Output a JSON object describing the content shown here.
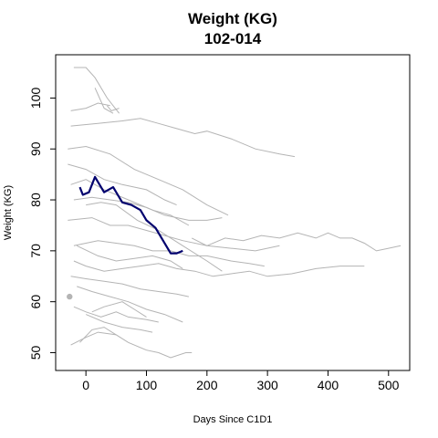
{
  "chart_data": {
    "type": "line",
    "title": "Weight (KG)",
    "subtitle": "102-014",
    "xlabel": "Days Since C1D1",
    "ylabel": "Weight (KG)",
    "xlim": [
      -50,
      535
    ],
    "ylim": [
      46.5,
      108.5
    ],
    "xticks": [
      0,
      100,
      200,
      300,
      400,
      500
    ],
    "yticks": [
      50,
      60,
      70,
      80,
      90,
      100
    ],
    "grid": false,
    "legend": "none",
    "colors": {
      "background_series": "#b4b4b4",
      "highlight_series": "#00006e",
      "highlight_point": "#b4b4b4"
    },
    "background_series": [
      {
        "values": [
          [
            -20,
            106
          ],
          [
            0,
            106
          ],
          [
            15,
            104
          ],
          [
            35,
            100
          ],
          [
            55,
            97
          ]
        ]
      },
      {
        "values": [
          [
            -25,
            97.5
          ],
          [
            0,
            98
          ],
          [
            20,
            99
          ],
          [
            40,
            98.5
          ]
        ]
      },
      {
        "values": [
          [
            35,
            98.5
          ],
          [
            42,
            97.5
          ],
          [
            55,
            98
          ]
        ]
      },
      {
        "values": [
          [
            15,
            102
          ],
          [
            30,
            98
          ],
          [
            45,
            97
          ]
        ]
      },
      {
        "values": [
          [
            -25,
            94.5
          ],
          [
            20,
            95
          ],
          [
            60,
            95.5
          ],
          [
            90,
            96
          ],
          [
            120,
            95
          ],
          [
            150,
            94
          ],
          [
            180,
            93
          ],
          [
            200,
            93.5
          ],
          [
            240,
            92
          ],
          [
            280,
            90
          ],
          [
            320,
            89
          ],
          [
            345,
            88.5
          ]
        ]
      },
      {
        "values": [
          [
            -30,
            90
          ],
          [
            0,
            90.5
          ],
          [
            40,
            89
          ],
          [
            80,
            86
          ],
          [
            120,
            84
          ],
          [
            160,
            82
          ],
          [
            200,
            79
          ],
          [
            235,
            77
          ]
        ]
      },
      {
        "values": [
          [
            -30,
            87
          ],
          [
            0,
            86
          ],
          [
            30,
            84
          ],
          [
            60,
            83
          ],
          [
            100,
            82
          ],
          [
            130,
            80
          ],
          [
            150,
            79
          ]
        ]
      },
      {
        "values": [
          [
            -25,
            83
          ],
          [
            0,
            84
          ],
          [
            30,
            82
          ],
          [
            70,
            80
          ],
          [
            110,
            78
          ],
          [
            140,
            77
          ],
          [
            170,
            75
          ]
        ]
      },
      {
        "values": [
          [
            -20,
            80
          ],
          [
            10,
            80.5
          ],
          [
            40,
            80
          ],
          [
            70,
            79.5
          ],
          [
            100,
            78.5
          ],
          [
            130,
            77
          ],
          [
            170,
            76
          ],
          [
            200,
            76
          ],
          [
            225,
            76.5
          ]
        ]
      },
      {
        "values": [
          [
            0,
            79
          ],
          [
            25,
            79.5
          ],
          [
            50,
            79
          ],
          [
            85,
            76
          ],
          [
            120,
            74
          ],
          [
            160,
            71
          ],
          [
            200,
            68
          ],
          [
            225,
            66
          ]
        ]
      },
      {
        "values": [
          [
            -30,
            76
          ],
          [
            10,
            76.5
          ],
          [
            40,
            75
          ],
          [
            70,
            75
          ],
          [
            100,
            74
          ],
          [
            130,
            73
          ],
          [
            160,
            72
          ],
          [
            200,
            71
          ],
          [
            240,
            70.5
          ],
          [
            280,
            70
          ],
          [
            320,
            71
          ]
        ]
      },
      {
        "values": [
          [
            175,
            72.5
          ],
          [
            200,
            71
          ],
          [
            230,
            72.5
          ],
          [
            260,
            72
          ],
          [
            290,
            73
          ],
          [
            320,
            72.5
          ],
          [
            350,
            73.5
          ],
          [
            380,
            72.5
          ],
          [
            400,
            73.5
          ],
          [
            420,
            72.5
          ],
          [
            440,
            72.5
          ],
          [
            460,
            71.5
          ],
          [
            480,
            70
          ],
          [
            500,
            70.5
          ],
          [
            520,
            71
          ]
        ]
      },
      {
        "values": [
          [
            -20,
            71
          ],
          [
            20,
            72
          ],
          [
            50,
            71.5
          ],
          [
            80,
            71
          ],
          [
            110,
            70
          ],
          [
            140,
            70
          ],
          [
            170,
            69
          ],
          [
            200,
            69
          ],
          [
            240,
            68
          ],
          [
            270,
            67.5
          ],
          [
            295,
            67
          ]
        ]
      },
      {
        "values": [
          [
            -15,
            71
          ],
          [
            20,
            69
          ],
          [
            50,
            68
          ],
          [
            80,
            68.5
          ],
          [
            110,
            69
          ],
          [
            140,
            68
          ],
          [
            160,
            66.5
          ]
        ]
      },
      {
        "values": [
          [
            -20,
            68
          ],
          [
            0,
            67
          ],
          [
            30,
            66
          ],
          [
            60,
            66.5
          ],
          [
            90,
            67
          ],
          [
            120,
            67.5
          ],
          [
            150,
            66.5
          ],
          [
            180,
            66
          ],
          [
            210,
            65
          ],
          [
            240,
            65.5
          ],
          [
            270,
            66
          ],
          [
            300,
            65
          ],
          [
            340,
            65.5
          ],
          [
            380,
            66.5
          ],
          [
            420,
            67
          ],
          [
            460,
            67
          ]
        ]
      },
      {
        "values": [
          [
            -25,
            65
          ],
          [
            0,
            64.5
          ],
          [
            30,
            64
          ],
          [
            60,
            63.5
          ],
          [
            90,
            62.5
          ],
          [
            120,
            62
          ],
          [
            150,
            61.5
          ],
          [
            170,
            61
          ]
        ]
      },
      {
        "values": [
          [
            -15,
            63
          ],
          [
            10,
            62
          ],
          [
            40,
            61
          ],
          [
            70,
            60
          ],
          [
            100,
            58.5
          ],
          [
            130,
            57.5
          ],
          [
            160,
            56
          ]
        ]
      },
      {
        "values": [
          [
            -20,
            59
          ],
          [
            0,
            58
          ],
          [
            25,
            57
          ],
          [
            50,
            58
          ],
          [
            70,
            57
          ],
          [
            100,
            56.5
          ],
          [
            120,
            56
          ]
        ]
      },
      {
        "values": [
          [
            0,
            57.5
          ],
          [
            30,
            56
          ],
          [
            60,
            55
          ],
          [
            90,
            54.5
          ],
          [
            110,
            54
          ]
        ]
      },
      {
        "values": [
          [
            10,
            58
          ],
          [
            30,
            59
          ],
          [
            60,
            60
          ],
          [
            80,
            58.5
          ],
          [
            100,
            57
          ]
        ]
      },
      {
        "values": [
          [
            -25,
            51.5
          ],
          [
            0,
            53
          ],
          [
            20,
            54
          ],
          [
            50,
            53.5
          ],
          [
            70,
            52
          ],
          [
            100,
            50.5
          ],
          [
            120,
            50
          ],
          [
            140,
            49
          ],
          [
            165,
            50
          ],
          [
            175,
            50
          ]
        ]
      },
      {
        "values": [
          [
            -10,
            52
          ],
          [
            10,
            54.5
          ],
          [
            30,
            55
          ],
          [
            50,
            53.5
          ]
        ]
      }
    ],
    "highlight_series": {
      "values": [
        [
          -10,
          82.5
        ],
        [
          -5,
          81
        ],
        [
          5,
          81.5
        ],
        [
          15,
          84.5
        ],
        [
          30,
          81.5
        ],
        [
          45,
          82.5
        ],
        [
          60,
          79.5
        ],
        [
          75,
          79
        ],
        [
          90,
          78
        ],
        [
          100,
          76
        ],
        [
          115,
          74.5
        ],
        [
          125,
          72.5
        ],
        [
          140,
          69.5
        ],
        [
          150,
          69.5
        ],
        [
          160,
          70
        ]
      ]
    },
    "points": [
      {
        "x": -27,
        "y": 61
      }
    ]
  }
}
